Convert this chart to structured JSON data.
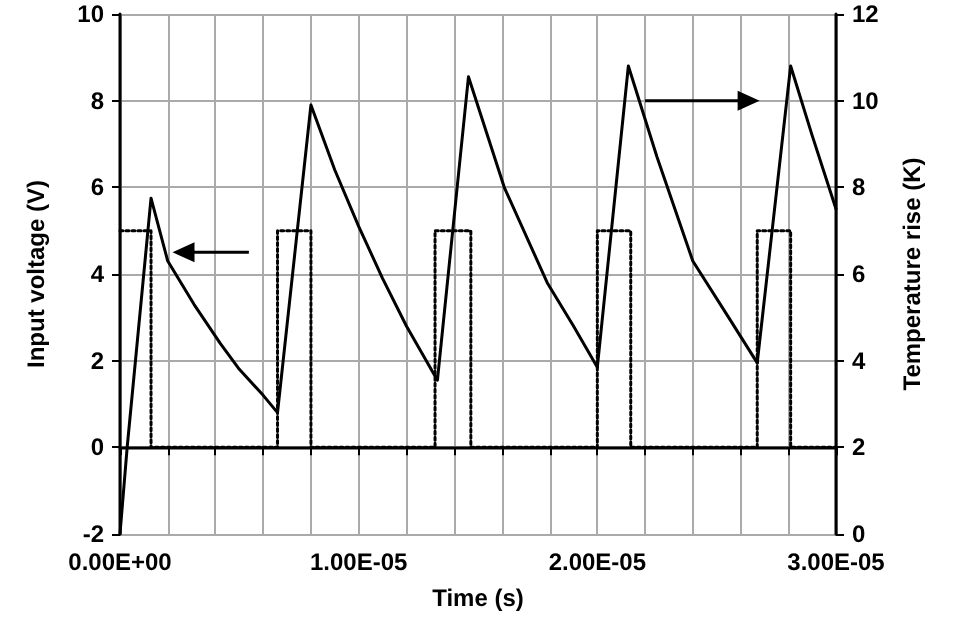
{
  "chart_data": {
    "type": "line",
    "xlabel": "Time (s)",
    "ylabel": "Input voltage (V)",
    "y2label": "Temperature rise (K)",
    "xlim": [
      0,
      3e-05
    ],
    "xticks": [
      {
        "value": 0,
        "label": "0.00E+00"
      },
      {
        "value": 2e-06,
        "label": null
      },
      {
        "value": 4e-06,
        "label": null
      },
      {
        "value": 6e-06,
        "label": null
      },
      {
        "value": 8e-06,
        "label": null
      },
      {
        "value": 1e-05,
        "label": "1.00E-05"
      },
      {
        "value": 1.2e-05,
        "label": null
      },
      {
        "value": 1.4e-05,
        "label": null
      },
      {
        "value": 1.6e-05,
        "label": null
      },
      {
        "value": 1.8e-05,
        "label": null
      },
      {
        "value": 2e-05,
        "label": "2.00E-05"
      },
      {
        "value": 2.2e-05,
        "label": null
      },
      {
        "value": 2.4e-05,
        "label": null
      },
      {
        "value": 2.6e-05,
        "label": null
      },
      {
        "value": 2.8e-05,
        "label": null
      },
      {
        "value": 3e-05,
        "label": "3.00E-05"
      }
    ],
    "ylim": [
      -2,
      10
    ],
    "yticks": [
      -2,
      0,
      2,
      4,
      6,
      8,
      10
    ],
    "y2lim": [
      0,
      12
    ],
    "y2ticks": [
      0,
      2,
      4,
      6,
      8,
      10,
      12
    ],
    "grid": true,
    "marker": "none",
    "series": [
      {
        "color": "#000000",
        "line_style": "dotted",
        "x": [
          0,
          1.3e-06,
          1.3e-06,
          6.6e-06,
          6.6e-06,
          8e-06,
          8e-06,
          1.32e-05,
          1.32e-05,
          1.47e-05,
          1.47e-05,
          2e-05,
          2e-05,
          2.14e-05,
          2.14e-05,
          2.67e-05,
          2.67e-05,
          2.81e-05,
          2.81e-05,
          3e-05
        ],
        "values": [
          5,
          5,
          0,
          0,
          5,
          5,
          0,
          0,
          5,
          5,
          0,
          0,
          5,
          5,
          0,
          0,
          5,
          5,
          0,
          0
        ]
      },
      {
        "color": "#000000",
        "line_style": "solid",
        "axis": "y2",
        "x": [
          0,
          3e-07,
          1.3e-06,
          2e-06,
          3.1e-06,
          4.2e-06,
          5e-06,
          6e-06,
          6.6e-06,
          8e-06,
          9e-06,
          1e-05,
          1.1e-05,
          1.2e-05,
          1.33e-05,
          1.46e-05,
          1.61e-05,
          1.79e-05,
          1.9e-05,
          2e-05,
          2.13e-05,
          2.25e-05,
          2.4e-05,
          2.55e-05,
          2.67e-05,
          2.81e-05,
          2.9e-05,
          3e-05
        ],
        "values": [
          0,
          2,
          7.75,
          6.3,
          5.3,
          4.4,
          3.8,
          3.2,
          2.8,
          9.9,
          8.4,
          7.1,
          5.9,
          4.8,
          3.55,
          10.55,
          8.0,
          5.8,
          4.8,
          3.85,
          10.8,
          8.7,
          6.3,
          5.0,
          3.95,
          10.8,
          9.2,
          7.5
        ]
      }
    ]
  }
}
